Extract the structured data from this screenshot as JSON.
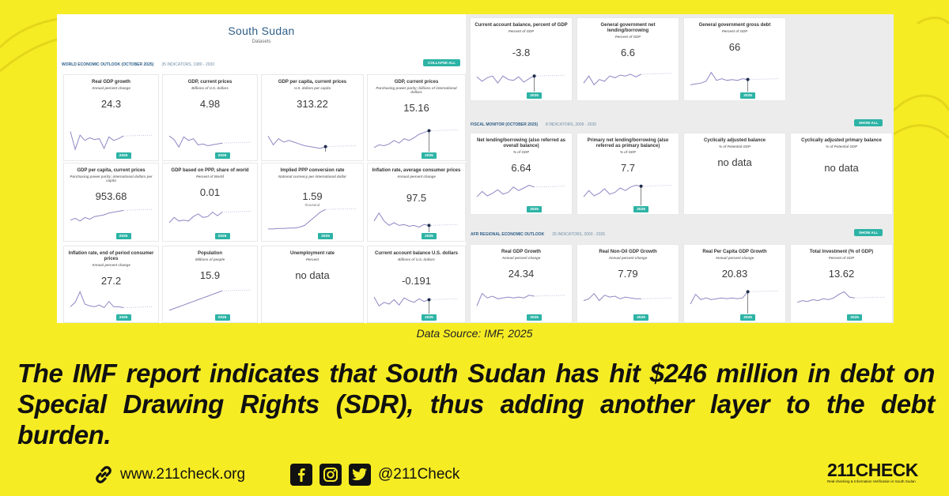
{
  "brand": {
    "background": "#f6ec24",
    "accent": "#2db3a5",
    "title_blue": "#2e5e87"
  },
  "panel": {
    "country": "South Sudan",
    "subtitle": "Datasets",
    "sections": [
      {
        "id": "weo",
        "name": "WORLD ECONOMIC OUTLOOK (OCTOBER 2025)",
        "meta": "35 INDICATORS, 1980 - 2030",
        "button": "COLLAPSE ALL"
      },
      {
        "id": "fm",
        "name": "FISCAL MONITOR (OCTOBER 2025)",
        "meta": "8 INDICATORS, 2009 - 2030",
        "button": "SHOW ALL"
      },
      {
        "id": "afr",
        "name": "AFR REGIONAL ECONOMIC OUTLOOK",
        "meta": "26 INDICATORS, 2000 - 2026",
        "button": "SHOW ALL"
      }
    ],
    "cards": [
      {
        "title": "Real GDP growth",
        "sub": "Annual percent change",
        "value": "24.3",
        "unit": "",
        "year": "2025",
        "spark": [
          10,
          50,
          18,
          30,
          24,
          28,
          26,
          48,
          22,
          30,
          26,
          20
        ],
        "dot": false
      },
      {
        "title": "GDP, current prices",
        "sub": "Billions of U.S. dollars",
        "value": "4.98",
        "unit": "",
        "year": "2025",
        "spark": [
          20,
          28,
          45,
          22,
          30,
          26,
          40,
          38,
          42,
          40,
          38,
          36
        ],
        "dot": false
      },
      {
        "title": "GDP per capita, current prices",
        "sub": "U.S. dollars per capita",
        "value": "313.22",
        "unit": "",
        "year": "",
        "spark": [
          20,
          40,
          26,
          34,
          30,
          34,
          38,
          42,
          44,
          46,
          48,
          44
        ],
        "dot": true
      },
      {
        "title": "GDP, current prices",
        "sub": "Purchasing power parity; billions of international dollars",
        "value": "15.16",
        "unit": "",
        "year": "2025",
        "spark": [
          46,
          40,
          42,
          38,
          30,
          36,
          26,
          30,
          24,
          16,
          12,
          8
        ],
        "dot": true
      },
      {
        "title": "GDP per capita, current prices",
        "sub": "Purchasing power parity; international dollars per capita",
        "value": "953.68",
        "unit": "",
        "year": "2025",
        "spark": [
          28,
          24,
          30,
          22,
          26,
          20,
          18,
          16,
          12,
          10,
          8,
          6
        ],
        "dot": false
      },
      {
        "title": "GDP based on PPP, share of world",
        "sub": "Percent of World",
        "value": "0.01",
        "unit": "",
        "year": "2025",
        "spark": [
          34,
          22,
          30,
          28,
          30,
          20,
          14,
          22,
          20,
          10,
          18,
          10
        ],
        "dot": false
      },
      {
        "title": "Implied PPP conversion rate",
        "sub": "National currency per international dollar",
        "value": "1.59",
        "unit": "thousand",
        "year": "2025",
        "spark": [
          48,
          48,
          47,
          47,
          46,
          46,
          44,
          40,
          30,
          20,
          10,
          4
        ],
        "dot": false
      },
      {
        "title": "Inflation rate, average consumer prices",
        "sub": "Annual percent change",
        "value": "97.5",
        "unit": "",
        "year": "2025",
        "spark": [
          30,
          12,
          30,
          40,
          34,
          40,
          38,
          42,
          40,
          44,
          38,
          40
        ],
        "dot": true
      },
      {
        "title": "Inflation rate, end of period consumer prices",
        "sub": "Annual percent change",
        "value": "27.2",
        "unit": "",
        "year": "2025",
        "spark": [
          40,
          30,
          6,
          34,
          38,
          40,
          36,
          42,
          28,
          40,
          40,
          42
        ],
        "dot": false
      },
      {
        "title": "Population",
        "sub": "Millions of people",
        "value": "15.9",
        "unit": "",
        "year": "2025",
        "spark": [
          48,
          44,
          40,
          36,
          32,
          28,
          24,
          20,
          16,
          12,
          8,
          4
        ],
        "dot": false
      },
      {
        "title": "Unemployment rate",
        "sub": "Percent",
        "value": "no data",
        "unit": "",
        "year": "",
        "spark": [],
        "dot": false
      },
      {
        "title": "Current account balance U.S. dollars",
        "sub": "Billions of U.S. dollars",
        "value": "-0.191",
        "unit": "",
        "year": "2025",
        "spark": [
          18,
          38,
          30,
          34,
          24,
          36,
          20,
          26,
          30,
          22,
          28,
          24
        ],
        "dot": true
      },
      {
        "title": "Current account balance, percent of GDP",
        "sub": "Percent of GDP",
        "value": "-3.8",
        "unit": "",
        "year": "2025",
        "spark": [
          22,
          32,
          24,
          20,
          36,
          20,
          28,
          30,
          22,
          34,
          26,
          20
        ],
        "dot": true
      },
      {
        "title": "General government net lending/borrowing",
        "sub": "Percent of GDP",
        "value": "6.6",
        "unit": "",
        "year": "",
        "spark": [
          36,
          20,
          40,
          28,
          32,
          20,
          24,
          18,
          20,
          16,
          22,
          16
        ],
        "dot": false
      },
      {
        "title": "General government gross debt",
        "sub": "Percent of GDP",
        "value": "66",
        "unit": "",
        "year": "2025",
        "spark": [
          40,
          38,
          36,
          32,
          12,
          30,
          26,
          30,
          28,
          30,
          26,
          28
        ],
        "dot": true
      },
      {
        "title": "Net lending/borrowing (also referred as overall balance)",
        "sub": "% of GDP",
        "value": "6.64",
        "unit": "",
        "year": "2025",
        "spark": [
          36,
          24,
          34,
          28,
          20,
          30,
          26,
          14,
          22,
          16,
          10,
          14
        ],
        "dot": false
      },
      {
        "title": "Primary net lending/borrowing (also referred as primary balance)",
        "sub": "% of GDP",
        "value": "7.7",
        "unit": "",
        "year": "2025",
        "spark": [
          36,
          22,
          34,
          28,
          18,
          30,
          26,
          16,
          22,
          14,
          10,
          12
        ],
        "dot": true
      },
      {
        "title": "Cyclically adjusted balance",
        "sub": "% of Potential GDP",
        "value": "no data",
        "unit": "",
        "year": "",
        "spark": [],
        "dot": false
      },
      {
        "title": "Cyclically adjusted primary balance",
        "sub": "% of Potential GDP",
        "value": "no data",
        "unit": "",
        "year": "",
        "spark": [],
        "dot": false
      },
      {
        "title": "Real GDP Growth",
        "sub": "Annual percent change",
        "value": "24.34",
        "unit": "",
        "year": "2025",
        "spark": [
          38,
          10,
          20,
          16,
          22,
          20,
          18,
          20,
          18,
          20,
          14,
          16
        ],
        "dot": false
      },
      {
        "title": "Real Non-Oil GDP Growth",
        "sub": "Annual percent change",
        "value": "7.79",
        "unit": "",
        "year": "2025",
        "spark": [
          26,
          22,
          10,
          26,
          14,
          18,
          16,
          22,
          18,
          20,
          22,
          22
        ],
        "dot": false
      },
      {
        "title": "Real Per Capita GDP Growth",
        "sub": "Annual percent change",
        "value": "20.83",
        "unit": "",
        "year": "2025",
        "spark": [
          34,
          12,
          24,
          20,
          24,
          22,
          20,
          22,
          20,
          22,
          20,
          6
        ],
        "dot": true
      },
      {
        "title": "Total Investment (% of GDP)",
        "sub": "Percent of GDP",
        "value": "13.62",
        "unit": "",
        "year": "2025",
        "spark": [
          30,
          26,
          28,
          24,
          26,
          22,
          24,
          20,
          12,
          6,
          18,
          20
        ],
        "dot": false
      }
    ]
  },
  "source": "Data Source: IMF, 2025",
  "headline": "The IMF report indicates that South Sudan has hit $246 million in debt on Special Drawing Rights (SDR), thus adding another layer to the debt burden.",
  "footer": {
    "website": "www.211check.org",
    "handle": "@211Check",
    "icons": [
      "link-icon",
      "facebook-icon",
      "instagram-icon",
      "twitter-icon"
    ]
  },
  "logo": {
    "name": "211CHECK",
    "tagline": "Real-checking & Information Verification in South Sudan"
  }
}
